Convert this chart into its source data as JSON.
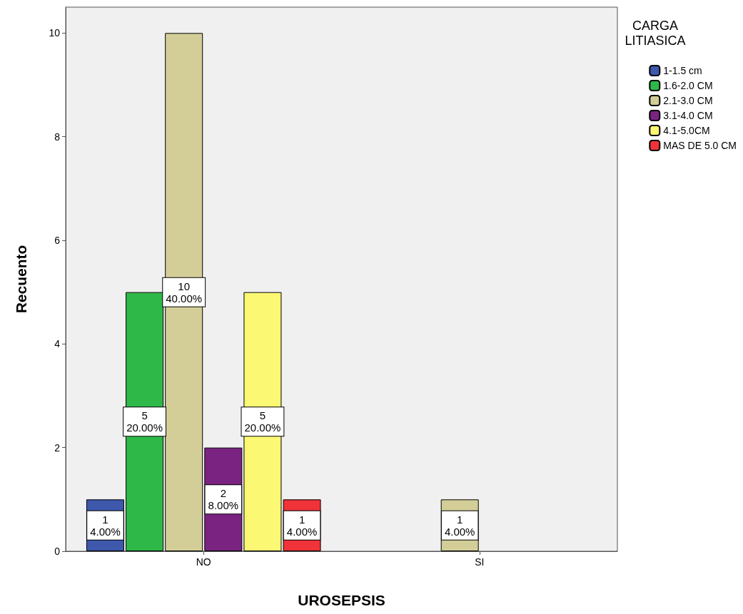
{
  "chart_data": {
    "type": "bar",
    "xlabel": "UROSEPSIS",
    "ylabel": "Recuento",
    "legend_title": "CARGA\nLITIASICA",
    "categories": [
      "NO",
      "SI"
    ],
    "series": [
      {
        "name": "1-1.5 cm",
        "color": "#3e58ac",
        "values": [
          1,
          null
        ],
        "value_labels": [
          "1\n4.00%",
          null
        ]
      },
      {
        "name": "1.6-2.0 CM",
        "color": "#2eb848",
        "values": [
          5,
          null
        ],
        "value_labels": [
          "5\n20.00%",
          null
        ]
      },
      {
        "name": "2.1-3.0 CM",
        "color": "#d3ce97",
        "values": [
          10,
          1
        ],
        "value_labels": [
          "10\n40.00%",
          "1\n4.00%"
        ]
      },
      {
        "name": "3.1-4.0 CM",
        "color": "#7b2381",
        "values": [
          2,
          null
        ],
        "value_labels": [
          "2\n8.00%",
          null
        ]
      },
      {
        "name": "4.1-5.0CM",
        "color": "#fbf873",
        "values": [
          5,
          null
        ],
        "value_labels": [
          "5\n20.00%",
          null
        ]
      },
      {
        "name": "MAS DE 5.0 CM",
        "color": "#ef3338",
        "values": [
          1,
          null
        ],
        "value_labels": [
          "1\n4.00%",
          null
        ]
      }
    ],
    "ylim": [
      0,
      10.5
    ],
    "yticks": [
      0,
      2,
      4,
      6,
      8,
      10
    ],
    "grid": false,
    "legend": "right"
  }
}
